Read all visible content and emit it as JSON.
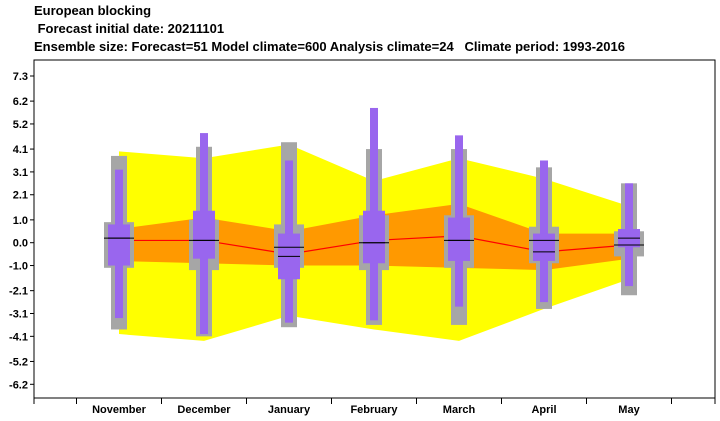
{
  "header": {
    "line1": "European blocking",
    "line2": " Forecast initial date: 20211101",
    "line3": "Ensemble size: Forecast=51 Model climate=600 Analysis climate=24   Climate period: 1993-2016"
  },
  "colors": {
    "climate_outer_band": "#ffff00",
    "climate_inner_band": "#ff9900",
    "climate_box": "#a6a6a6",
    "forecast_box": "#9966ee",
    "median_line": "#ff0000",
    "median_tick": "#000000"
  },
  "chart_data": {
    "type": "boxplot",
    "categories": [
      "November",
      "December",
      "January",
      "February",
      "March",
      "April",
      "May"
    ],
    "yticks": [
      "7.3",
      "6.2",
      "5.2",
      "4.1",
      "3.1",
      "2.1",
      "1.0",
      "0.0",
      "-1.0",
      "-2.1",
      "-3.1",
      "-4.1",
      "-5.2",
      "-6.2"
    ],
    "ylim": [
      -6.8,
      8.0
    ],
    "grid": false,
    "series": [
      {
        "role": "analysis-climate-outer-band",
        "low": [
          -4.0,
          -4.3,
          -3.2,
          -3.8,
          -4.3,
          -2.9,
          -1.6
        ],
        "high": [
          4.0,
          3.7,
          4.3,
          2.7,
          3.7,
          2.8,
          1.6
        ]
      },
      {
        "role": "analysis-climate-inner-band",
        "low": [
          -0.8,
          -0.9,
          -1.0,
          -1.0,
          -1.1,
          -1.2,
          -0.7
        ],
        "high": [
          0.6,
          1.1,
          0.5,
          1.2,
          1.7,
          0.4,
          0.4
        ]
      },
      {
        "role": "analysis-climate-median",
        "values": [
          0.1,
          0.1,
          -0.5,
          0.1,
          0.3,
          -0.4,
          -0.1
        ]
      },
      {
        "role": "model-climate",
        "whisker_low": [
          -3.8,
          -4.1,
          -3.7,
          -3.6,
          -3.6,
          -2.9,
          -2.3
        ],
        "whisker_high": [
          3.8,
          4.2,
          4.4,
          4.1,
          4.1,
          3.3,
          2.6
        ],
        "q1": [
          -1.1,
          -1.2,
          -1.1,
          -1.2,
          -1.1,
          -0.9,
          -0.6
        ],
        "q3": [
          0.9,
          1.0,
          0.8,
          1.2,
          1.2,
          0.7,
          0.5
        ],
        "median": [
          0.2,
          0.1,
          -0.2,
          0.0,
          0.1,
          0.1,
          -0.1
        ]
      },
      {
        "role": "forecast",
        "whisker_low": [
          -3.3,
          -4.0,
          -3.5,
          -3.4,
          -2.8,
          -2.6,
          -1.9
        ],
        "whisker_high": [
          3.2,
          4.8,
          3.6,
          5.9,
          4.7,
          3.6,
          2.6
        ],
        "q1": [
          -1.0,
          -0.7,
          -1.6,
          -0.9,
          -0.8,
          -0.8,
          -0.2
        ],
        "q3": [
          0.8,
          1.4,
          0.4,
          1.4,
          1.1,
          0.4,
          0.6
        ],
        "median": [
          0.2,
          0.1,
          -0.6,
          0.0,
          0.1,
          -0.4,
          0.2
        ]
      }
    ]
  }
}
